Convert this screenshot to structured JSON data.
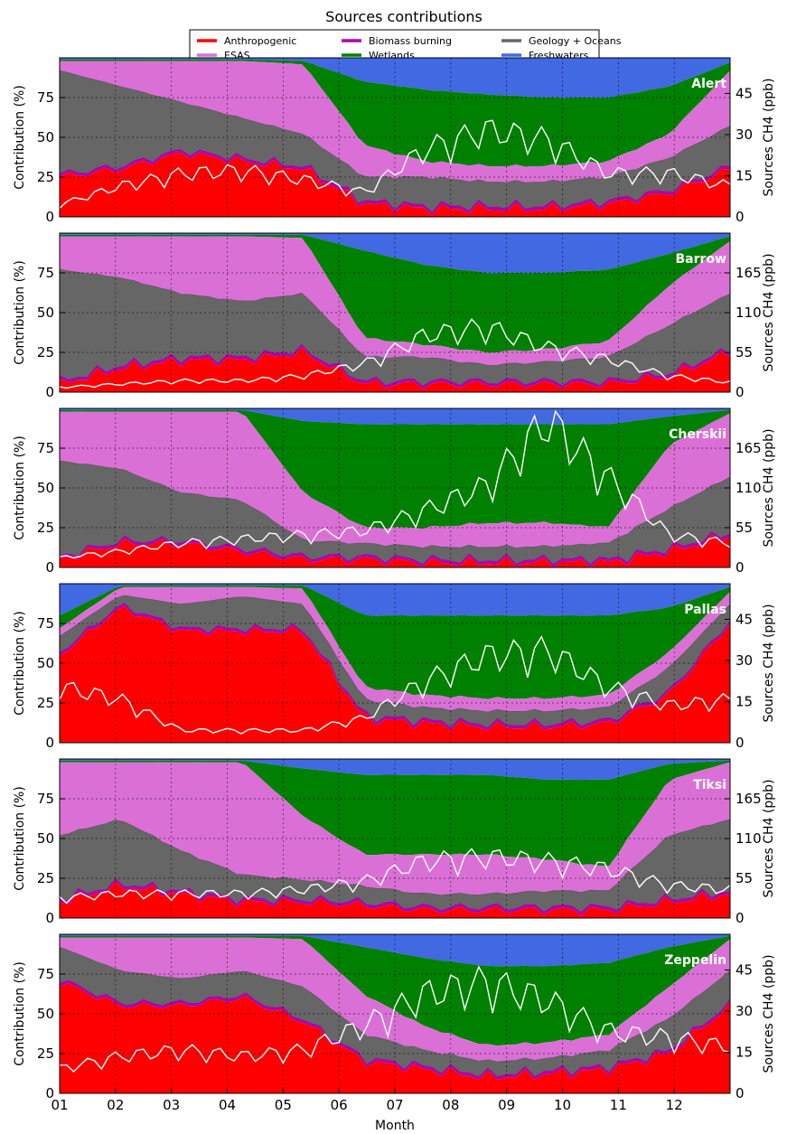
{
  "chart_data": {
    "type": "area",
    "title": "Sources contributions",
    "xlabel": "Month",
    "x_ticks": [
      "01",
      "02",
      "03",
      "04",
      "05",
      "06",
      "07",
      "08",
      "09",
      "10",
      "11",
      "12"
    ],
    "ylabel_left": "Contribution (%)",
    "ylim_left": [
      0,
      100
    ],
    "y_ticks_left": [
      0,
      25,
      50,
      75
    ],
    "ylabel_right": "Sources CH4 (ppb)",
    "grid": true,
    "legend_position": "top-center",
    "legend": [
      {
        "name": "Anthropogenic",
        "color": "#ff0000"
      },
      {
        "name": "Biomass burning",
        "color": "#b000b0"
      },
      {
        "name": "Geology + Oceans",
        "color": "#666666"
      },
      {
        "name": "ESAS",
        "color": "#da70d6"
      },
      {
        "name": "Wetlands",
        "color": "#008000"
      },
      {
        "name": "Freshwaters",
        "color": "#4169e1"
      }
    ],
    "series_order": [
      "Anthropogenic",
      "Biomass burning",
      "Geology + Oceans",
      "ESAS",
      "Wetlands",
      "Freshwaters"
    ],
    "series_colors": [
      "#ff0000",
      "#b000b0",
      "#666666",
      "#da70d6",
      "#008000",
      "#4169e1"
    ],
    "line_color": "#ffffff",
    "panels": [
      {
        "station": "Alert",
        "right_ticks": [
          0,
          15,
          30,
          45
        ],
        "right_max": 58,
        "months": [
          "01",
          "02",
          "03",
          "04",
          "05",
          "06",
          "07",
          "08",
          "09",
          "10",
          "11",
          "12"
        ],
        "stacked_percent": [
          [
            25,
            2,
            65,
            6,
            1,
            1
          ],
          [
            30,
            2,
            50,
            16,
            1,
            1
          ],
          [
            40,
            2,
            30,
            26,
            1,
            1
          ],
          [
            35,
            2,
            25,
            36,
            1,
            1
          ],
          [
            30,
            2,
            20,
            44,
            2,
            2
          ],
          [
            8,
            2,
            15,
            20,
            40,
            15
          ],
          [
            5,
            2,
            18,
            10,
            45,
            20
          ],
          [
            5,
            2,
            15,
            10,
            45,
            23
          ],
          [
            5,
            2,
            15,
            10,
            43,
            25
          ],
          [
            8,
            2,
            15,
            10,
            40,
            25
          ],
          [
            15,
            2,
            20,
            15,
            30,
            18
          ],
          [
            30,
            2,
            25,
            35,
            5,
            3
          ]
        ],
        "ch4_ppb": [
          4,
          10,
          14,
          15,
          12,
          8,
          22,
          28,
          25,
          14,
          14,
          10
        ]
      },
      {
        "station": "Barrow",
        "right_ticks": [
          0,
          55,
          110,
          165
        ],
        "right_max": 220,
        "months": [
          "01",
          "02",
          "03",
          "04",
          "05",
          "06",
          "07",
          "08",
          "09",
          "10",
          "11",
          "12"
        ],
        "stacked_percent": [
          [
            5,
            2,
            70,
            21,
            1,
            1
          ],
          [
            15,
            2,
            55,
            26,
            1,
            1
          ],
          [
            20,
            2,
            40,
            36,
            1,
            1
          ],
          [
            20,
            2,
            35,
            41,
            1,
            1
          ],
          [
            25,
            2,
            35,
            35,
            2,
            1
          ],
          [
            5,
            2,
            15,
            12,
            55,
            11
          ],
          [
            5,
            2,
            15,
            8,
            50,
            20
          ],
          [
            5,
            2,
            10,
            8,
            50,
            25
          ],
          [
            5,
            2,
            12,
            8,
            48,
            25
          ],
          [
            5,
            2,
            15,
            10,
            45,
            23
          ],
          [
            10,
            2,
            30,
            25,
            20,
            13
          ],
          [
            25,
            2,
            35,
            33,
            3,
            2
          ]
        ],
        "ch4_ppb": [
          6,
          10,
          14,
          14,
          20,
          35,
          70,
          80,
          55,
          40,
          20,
          12
        ]
      },
      {
        "station": "Cherskii",
        "right_ticks": [
          0,
          55,
          110,
          165
        ],
        "right_max": 220,
        "months": [
          "01",
          "02",
          "03",
          "04",
          "05",
          "06",
          "07",
          "08",
          "09",
          "10",
          "11",
          "12"
        ],
        "stacked_percent": [
          [
            5,
            2,
            60,
            31,
            1,
            1
          ],
          [
            15,
            2,
            45,
            36,
            1,
            1
          ],
          [
            15,
            2,
            30,
            51,
            1,
            1
          ],
          [
            10,
            2,
            30,
            56,
            1,
            1
          ],
          [
            5,
            2,
            10,
            30,
            45,
            8
          ],
          [
            5,
            2,
            8,
            10,
            65,
            10
          ],
          [
            3,
            2,
            8,
            12,
            65,
            10
          ],
          [
            3,
            2,
            8,
            15,
            62,
            10
          ],
          [
            3,
            2,
            8,
            15,
            62,
            10
          ],
          [
            3,
            2,
            10,
            10,
            65,
            10
          ],
          [
            10,
            2,
            25,
            40,
            18,
            5
          ],
          [
            20,
            2,
            35,
            40,
            2,
            1
          ]
        ],
        "ch4_ppb": [
          12,
          20,
          30,
          35,
          40,
          45,
          70,
          100,
          180,
          110,
          40,
          30
        ]
      },
      {
        "station": "Pallas",
        "right_ticks": [
          0,
          15,
          30,
          45
        ],
        "right_max": 58,
        "months": [
          "01",
          "02",
          "03",
          "04",
          "05",
          "06",
          "07",
          "08",
          "09",
          "10",
          "11",
          "12"
        ],
        "stacked_percent": [
          [
            55,
            2,
            10,
            5,
            8,
            20
          ],
          [
            85,
            2,
            6,
            5,
            1,
            1
          ],
          [
            70,
            2,
            15,
            11,
            1,
            1
          ],
          [
            70,
            2,
            20,
            6,
            1,
            1
          ],
          [
            70,
            2,
            15,
            10,
            2,
            1
          ],
          [
            15,
            2,
            10,
            8,
            45,
            20
          ],
          [
            12,
            2,
            8,
            8,
            50,
            20
          ],
          [
            10,
            2,
            8,
            8,
            52,
            20
          ],
          [
            10,
            2,
            8,
            8,
            52,
            20
          ],
          [
            12,
            2,
            8,
            8,
            50,
            20
          ],
          [
            30,
            2,
            15,
            10,
            28,
            15
          ],
          [
            75,
            2,
            10,
            8,
            3,
            2
          ]
        ],
        "ch4_ppb": [
          18,
          14,
          4,
          4,
          4,
          8,
          20,
          28,
          30,
          18,
          12,
          14
        ]
      },
      {
        "station": "Tiksi",
        "right_ticks": [
          0,
          55,
          110,
          165
        ],
        "right_max": 220,
        "months": [
          "01",
          "02",
          "03",
          "04",
          "05",
          "06",
          "07",
          "08",
          "09",
          "10",
          "11",
          "12"
        ],
        "stacked_percent": [
          [
            10,
            2,
            40,
            46,
            1,
            1
          ],
          [
            20,
            2,
            40,
            36,
            1,
            1
          ],
          [
            15,
            2,
            25,
            56,
            1,
            1
          ],
          [
            10,
            2,
            15,
            71,
            1,
            1
          ],
          [
            10,
            2,
            12,
            40,
            30,
            6
          ],
          [
            8,
            2,
            10,
            20,
            50,
            10
          ],
          [
            5,
            2,
            8,
            25,
            50,
            10
          ],
          [
            5,
            2,
            8,
            25,
            50,
            10
          ],
          [
            5,
            2,
            10,
            20,
            50,
            13
          ],
          [
            5,
            2,
            10,
            15,
            55,
            13
          ],
          [
            10,
            2,
            40,
            35,
            10,
            3
          ],
          [
            15,
            2,
            45,
            36,
            1,
            1
          ]
        ],
        "ch4_ppb": [
          25,
          30,
          30,
          30,
          35,
          45,
          70,
          75,
          70,
          60,
          40,
          35
        ]
      },
      {
        "station": "Zeppelin",
        "right_ticks": [
          0,
          15,
          30,
          45
        ],
        "right_max": 58,
        "months": [
          "01",
          "02",
          "03",
          "04",
          "05",
          "06",
          "07",
          "08",
          "09",
          "10",
          "11",
          "12"
        ],
        "stacked_percent": [
          [
            70,
            2,
            20,
            6,
            1,
            1
          ],
          [
            55,
            2,
            20,
            21,
            1,
            1
          ],
          [
            55,
            2,
            15,
            26,
            1,
            1
          ],
          [
            60,
            2,
            15,
            21,
            1,
            1
          ],
          [
            45,
            2,
            20,
            30,
            2,
            1
          ],
          [
            20,
            2,
            15,
            25,
            30,
            8
          ],
          [
            15,
            2,
            10,
            15,
            43,
            15
          ],
          [
            10,
            2,
            8,
            10,
            50,
            20
          ],
          [
            12,
            2,
            8,
            10,
            48,
            20
          ],
          [
            15,
            2,
            10,
            10,
            45,
            18
          ],
          [
            25,
            2,
            20,
            20,
            25,
            8
          ],
          [
            55,
            2,
            20,
            20,
            2,
            1
          ]
        ],
        "ch4_ppb": [
          8,
          12,
          14,
          12,
          14,
          22,
          32,
          36,
          30,
          20,
          18,
          15
        ]
      }
    ]
  }
}
